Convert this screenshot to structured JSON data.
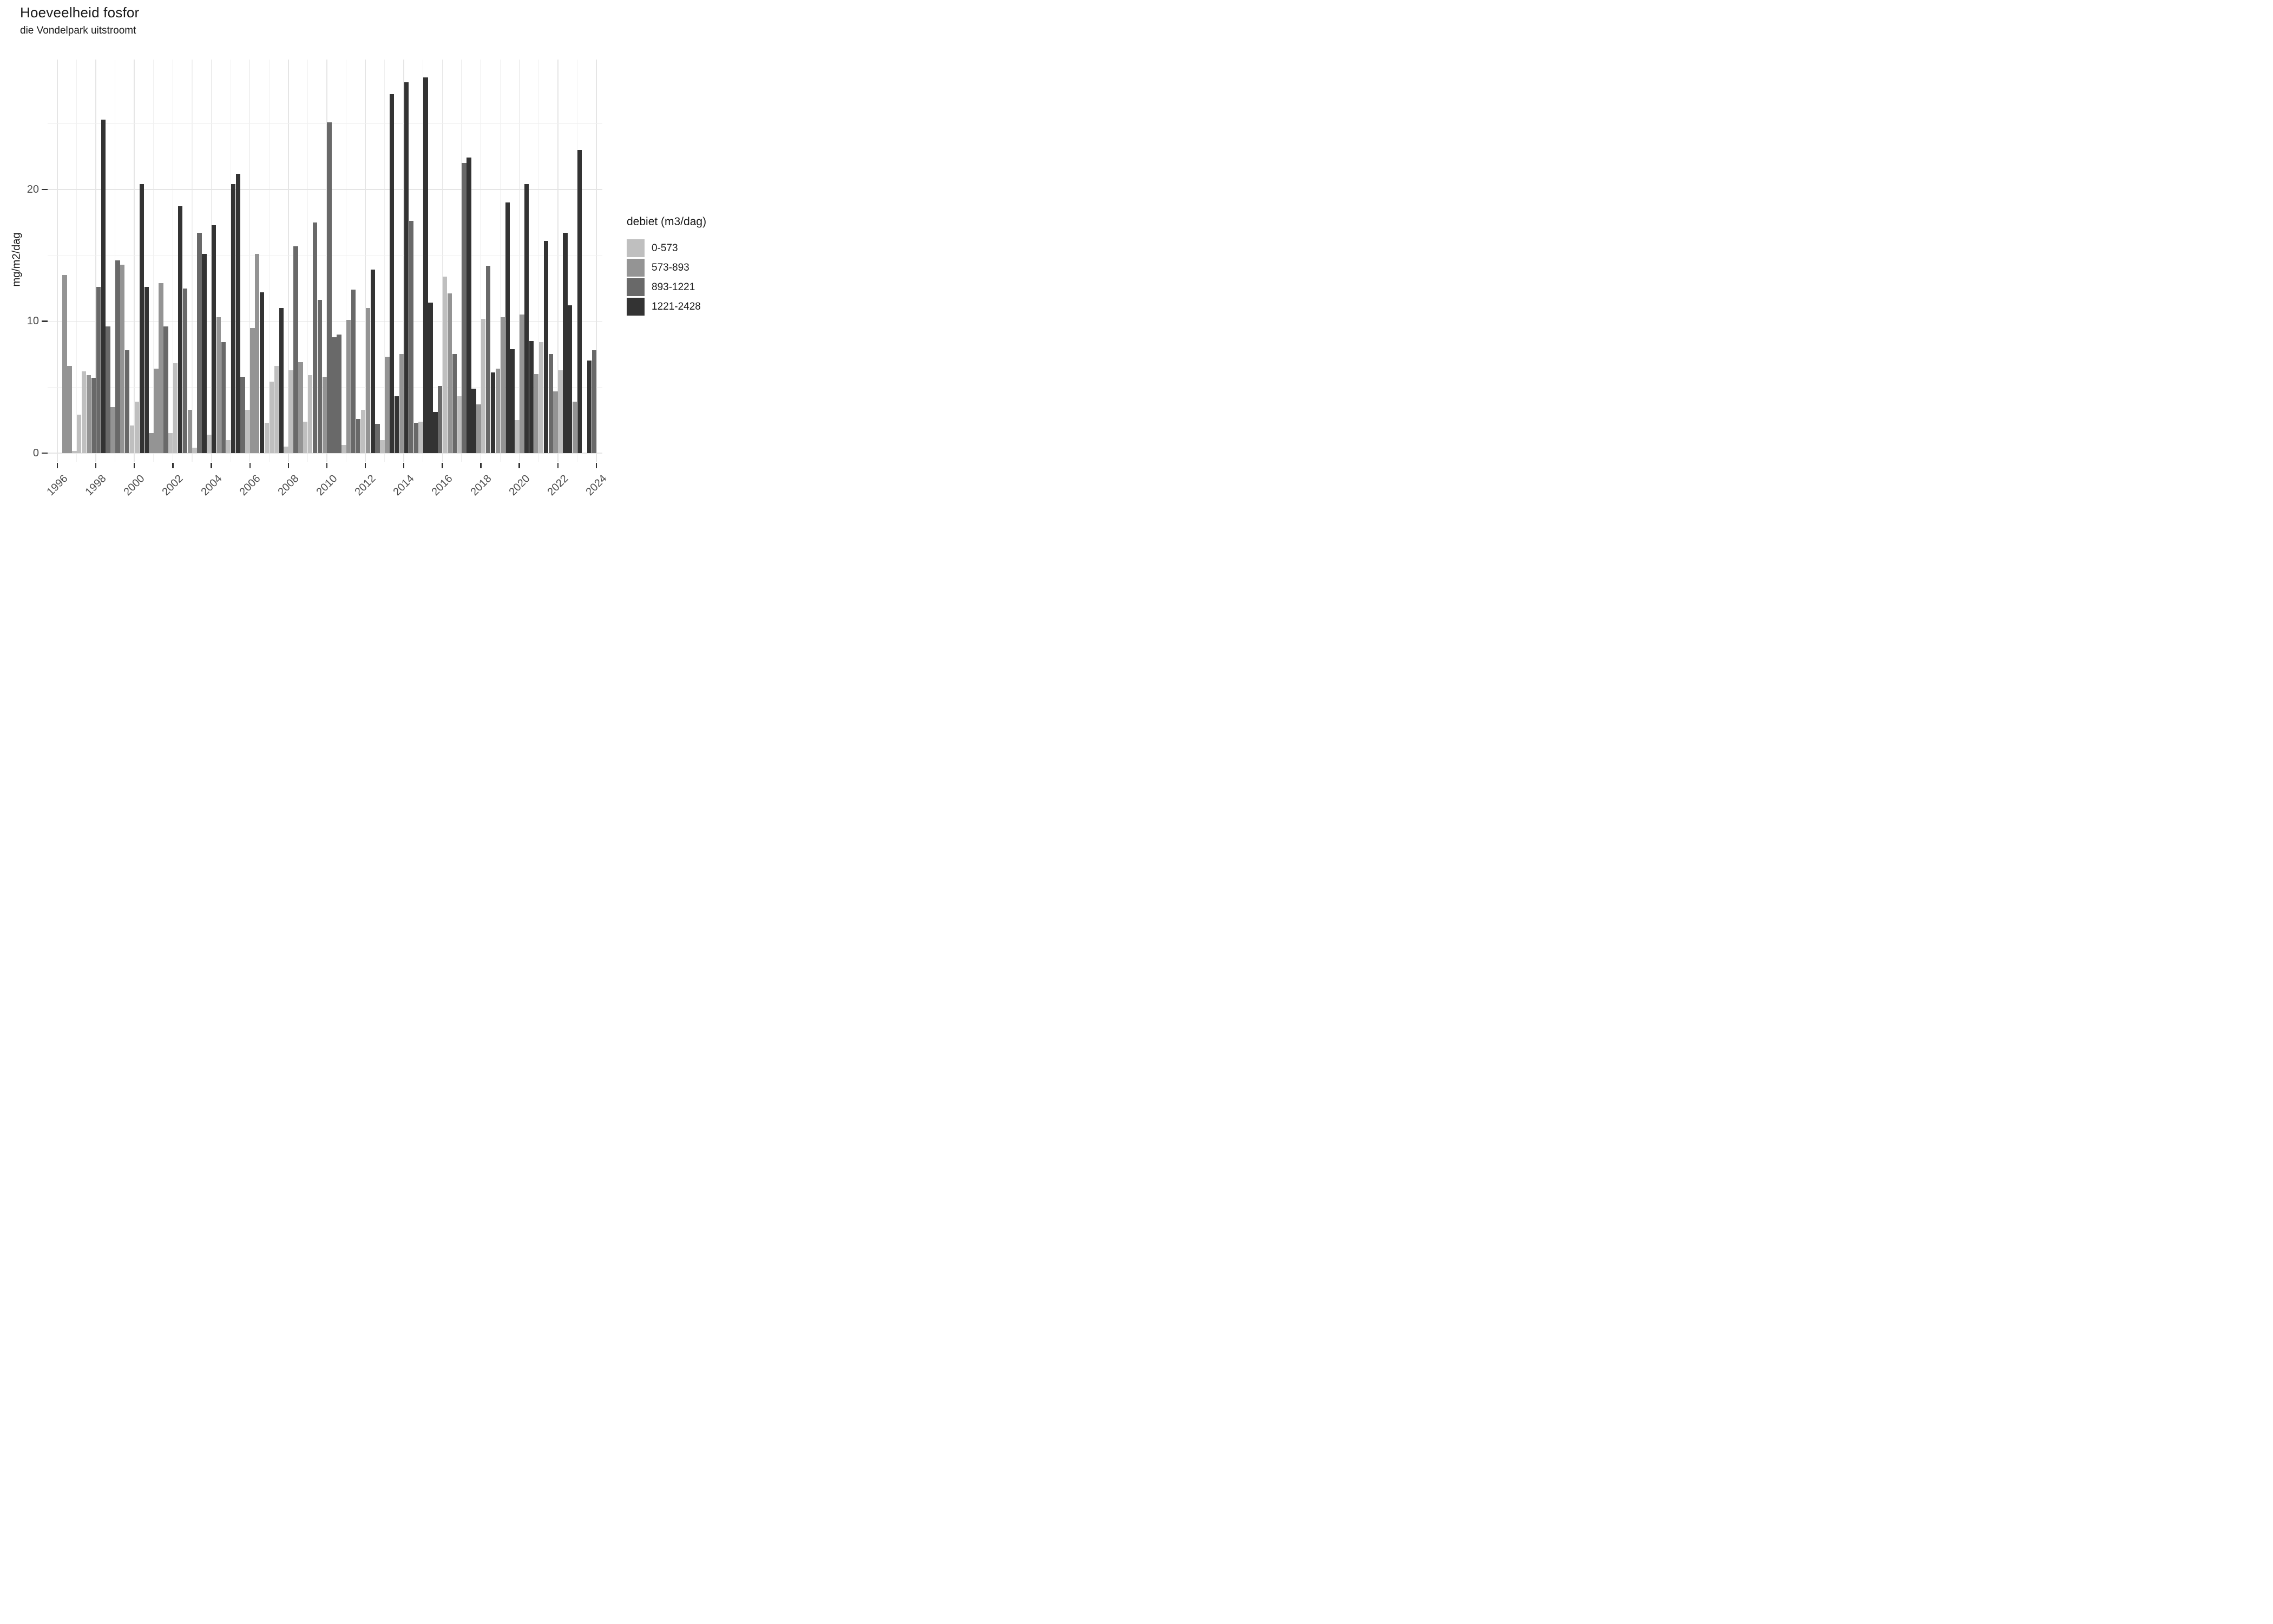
{
  "title": "Hoeveelheid fosfor",
  "subtitle": "die Vondelpark uitstroomt",
  "y_axis_title": "mg/m2/dag",
  "legend_title": "debiet (m3/dag)",
  "chart_data": {
    "type": "bar",
    "title": "Hoeveelheid fosfor",
    "subtitle": "die Vondelpark uitstroomt",
    "xlabel": "",
    "ylabel": "mg/m2/dag",
    "legend_title": "debiet (m3/dag)",
    "legend_position": "right",
    "grid": "on",
    "x_tick_labels": [
      "1996",
      "1998",
      "2000",
      "2002",
      "2004",
      "2006",
      "2008",
      "2010",
      "2012",
      "2014",
      "2016",
      "2018",
      "2020",
      "2022",
      "2024"
    ],
    "x_tick_years": [
      1996,
      1998,
      2000,
      2002,
      2004,
      2006,
      2008,
      2010,
      2012,
      2014,
      2016,
      2018,
      2020,
      2022,
      2024
    ],
    "x_minor_years_step": 1,
    "x_range_years": [
      1995.5,
      2024.3
    ],
    "y_tick_labels": [
      "0",
      "10",
      "20"
    ],
    "y_ticks": [
      0,
      10,
      20
    ],
    "y_minor_ticks": [
      5,
      15,
      25
    ],
    "ylim": [
      0,
      29.9
    ],
    "bins": [
      {
        "label": "0-573",
        "color": "#bfbfbf"
      },
      {
        "label": "573-893",
        "color": "#949494"
      },
      {
        "label": "893-1221",
        "color": "#696969"
      },
      {
        "label": "1221-2428",
        "color": "#333333"
      }
    ],
    "bar_x_unit": "year + (quarter-1)*0.25, bar width 0.25 year",
    "bars": [
      [
        1996,
        2,
        1,
        13.5
      ],
      [
        1996,
        3,
        1,
        6.6
      ],
      [
        1996,
        4,
        0,
        0.15
      ],
      [
        1997,
        1,
        0,
        2.9
      ],
      [
        1997,
        2,
        0,
        6.2
      ],
      [
        1997,
        3,
        1,
        5.9
      ],
      [
        1997,
        4,
        2,
        5.7
      ],
      [
        1998,
        1,
        2,
        12.6
      ],
      [
        1998,
        2,
        3,
        25.3
      ],
      [
        1998,
        3,
        2,
        9.6
      ],
      [
        1998,
        4,
        1,
        3.5
      ],
      [
        1999,
        1,
        2,
        14.6
      ],
      [
        1999,
        2,
        1,
        14.3
      ],
      [
        1999,
        3,
        2,
        7.8
      ],
      [
        1999,
        4,
        0,
        2.1
      ],
      [
        2000,
        1,
        0,
        3.9
      ],
      [
        2000,
        2,
        3,
        20.4
      ],
      [
        2000,
        3,
        3,
        12.6
      ],
      [
        2000,
        4,
        1,
        1.5
      ],
      [
        2001,
        1,
        1,
        6.4
      ],
      [
        2001,
        2,
        1,
        12.9
      ],
      [
        2001,
        3,
        2,
        9.6
      ],
      [
        2001,
        4,
        0,
        1.5
      ],
      [
        2002,
        1,
        0,
        6.8
      ],
      [
        2002,
        2,
        3,
        18.7
      ],
      [
        2002,
        3,
        2,
        12.5
      ],
      [
        2002,
        4,
        1,
        3.3
      ],
      [
        2003,
        1,
        0,
        0.4
      ],
      [
        2003,
        2,
        2,
        16.7
      ],
      [
        2003,
        3,
        3,
        15.1
      ],
      [
        2003,
        4,
        0,
        1.4
      ],
      [
        2004,
        1,
        3,
        17.3
      ],
      [
        2004,
        2,
        1,
        10.3
      ],
      [
        2004,
        3,
        2,
        8.4
      ],
      [
        2004,
        4,
        0,
        1.0
      ],
      [
        2005,
        1,
        3,
        20.4
      ],
      [
        2005,
        2,
        3,
        21.2
      ],
      [
        2005,
        3,
        2,
        5.8
      ],
      [
        2005,
        4,
        0,
        3.3
      ],
      [
        2006,
        1,
        1,
        9.5
      ],
      [
        2006,
        2,
        1,
        15.1
      ],
      [
        2006,
        3,
        3,
        12.2
      ],
      [
        2006,
        4,
        0,
        2.3
      ],
      [
        2007,
        1,
        0,
        5.4
      ],
      [
        2007,
        2,
        0,
        6.6
      ],
      [
        2007,
        3,
        3,
        11.0
      ],
      [
        2007,
        4,
        0,
        0.5
      ],
      [
        2008,
        1,
        0,
        6.3
      ],
      [
        2008,
        2,
        2,
        15.7
      ],
      [
        2008,
        3,
        1,
        6.9
      ],
      [
        2008,
        4,
        0,
        2.4
      ],
      [
        2009,
        1,
        0,
        5.9
      ],
      [
        2009,
        2,
        2,
        17.5
      ],
      [
        2009,
        3,
        2,
        11.6
      ],
      [
        2009,
        4,
        1,
        5.8
      ],
      [
        2010,
        1,
        2,
        25.1
      ],
      [
        2010,
        2,
        2,
        8.8
      ],
      [
        2010,
        3,
        2,
        9.0
      ],
      [
        2010,
        4,
        0,
        0.6
      ],
      [
        2011,
        1,
        1,
        10.1
      ],
      [
        2011,
        2,
        2,
        12.4
      ],
      [
        2011,
        3,
        2,
        2.6
      ],
      [
        2011,
        4,
        0,
        3.3
      ],
      [
        2012,
        1,
        1,
        11.0
      ],
      [
        2012,
        2,
        3,
        13.9
      ],
      [
        2012,
        3,
        2,
        2.2
      ],
      [
        2012,
        4,
        0,
        1.0
      ],
      [
        2013,
        1,
        1,
        7.3
      ],
      [
        2013,
        2,
        3,
        27.2
      ],
      [
        2013,
        3,
        3,
        4.3
      ],
      [
        2013,
        4,
        1,
        7.5
      ],
      [
        2014,
        1,
        3,
        28.1
      ],
      [
        2014,
        2,
        2,
        17.6
      ],
      [
        2014,
        3,
        2,
        2.3
      ],
      [
        2014,
        4,
        0,
        2.4
      ],
      [
        2015,
        1,
        3,
        28.5
      ],
      [
        2015,
        2,
        3,
        11.4
      ],
      [
        2015,
        3,
        3,
        3.1
      ],
      [
        2015,
        4,
        2,
        5.1
      ],
      [
        2016,
        1,
        0,
        13.4
      ],
      [
        2016,
        2,
        1,
        12.1
      ],
      [
        2016,
        3,
        2,
        7.5
      ],
      [
        2016,
        4,
        0,
        4.3
      ],
      [
        2017,
        1,
        2,
        22.0
      ],
      [
        2017,
        2,
        3,
        22.4
      ],
      [
        2017,
        3,
        3,
        4.9
      ],
      [
        2017,
        4,
        1,
        3.7
      ],
      [
        2018,
        1,
        0,
        10.2
      ],
      [
        2018,
        2,
        2,
        14.2
      ],
      [
        2018,
        3,
        3,
        6.1
      ],
      [
        2018,
        4,
        1,
        6.4
      ],
      [
        2019,
        1,
        1,
        10.3
      ],
      [
        2019,
        2,
        3,
        19.0
      ],
      [
        2019,
        3,
        3,
        7.9
      ],
      [
        2019,
        4,
        0,
        2.5
      ],
      [
        2020,
        1,
        1,
        10.5
      ],
      [
        2020,
        2,
        3,
        20.4
      ],
      [
        2020,
        3,
        3,
        8.5
      ],
      [
        2020,
        4,
        1,
        6.0
      ],
      [
        2021,
        1,
        0,
        8.4
      ],
      [
        2021,
        2,
        3,
        16.1
      ],
      [
        2021,
        3,
        2,
        7.5
      ],
      [
        2021,
        4,
        1,
        4.7
      ],
      [
        2022,
        1,
        0,
        6.3
      ],
      [
        2022,
        2,
        3,
        16.7
      ],
      [
        2022,
        3,
        3,
        11.2
      ],
      [
        2022,
        4,
        1,
        3.9
      ],
      [
        2023,
        1,
        3,
        23.0
      ],
      [
        2023,
        3,
        3,
        7.0
      ],
      [
        2023,
        4,
        2,
        7.8
      ]
    ]
  },
  "colors": {
    "background": "#ffffff",
    "grid_major": "#e5e5e5",
    "grid_minor": "#f0f0f0",
    "axis_text": "#4d4d4d",
    "tick_mark": "#333333",
    "text": "#1a1a1a"
  }
}
